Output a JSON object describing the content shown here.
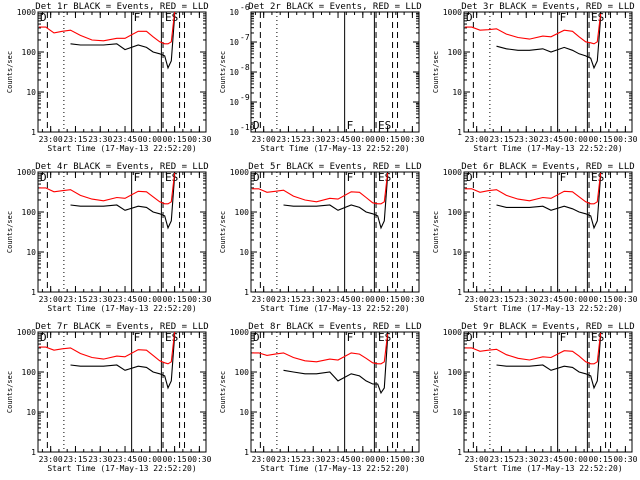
{
  "colors": {
    "events": "#000000",
    "lld": "#ff0000",
    "background": "#ffffff",
    "axes": "#000000"
  },
  "chart_data": [
    {
      "type": "line",
      "title": "Det 1r BLACK = Events, RED = LLD",
      "xlabel": "Start Time (17-May-13 22:52:20)",
      "ylabel": "Counts/sec",
      "yscale": "log",
      "ylim": [
        1,
        1000
      ],
      "ytick_labels": [
        "1",
        "10",
        "100",
        "1000"
      ],
      "xtick_labels": [
        "23:00",
        "23:15",
        "23:30",
        "23:45",
        "00:00",
        "00:15",
        "00:30"
      ],
      "x": [
        "22:53",
        "22:57",
        "23:02",
        "23:07",
        "23:12",
        "23:18",
        "23:25",
        "23:32",
        "23:40",
        "23:45",
        "23:53",
        "23:58",
        "00:02",
        "00:06",
        "00:09",
        "00:11",
        "00:13",
        "00:15"
      ],
      "series": [
        {
          "name": "BLACK = Events",
          "values": [
            null,
            null,
            null,
            null,
            160,
            150,
            150,
            150,
            160,
            115,
            150,
            130,
            100,
            90,
            80,
            40,
            60,
            800
          ]
        },
        {
          "name": "RED = LLD",
          "values": [
            420,
            420,
            300,
            330,
            350,
            260,
            200,
            190,
            220,
            220,
            330,
            330,
            240,
            180,
            160,
            160,
            180,
            1000
          ]
        }
      ],
      "flags": [
        "D",
        "F",
        "E",
        "S"
      ],
      "vlines": [
        {
          "x": "22:58",
          "style": "dashed"
        },
        {
          "x": "23:08",
          "style": "dotted"
        },
        {
          "x": "23:49",
          "style": "solid"
        },
        {
          "x": "00:07",
          "style": "solid"
        },
        {
          "x": "00:08",
          "style": "dashed"
        },
        {
          "x": "00:18",
          "style": "dashed"
        },
        {
          "x": "00:21",
          "style": "dashed"
        }
      ]
    },
    {
      "type": "line",
      "title": "Det 2r BLACK = Events, RED = LLD",
      "xlabel": "Start Time (17-May-13 22:52:20)",
      "ylabel": "Counts/sec",
      "yscale": "log",
      "ylim": [
        1e-10,
        1e-06
      ],
      "ytick_labels": [
        "10",
        "10",
        "10",
        "10",
        "10"
      ],
      "ytick_exponents": [
        "-10",
        "-9",
        "-8",
        "-7",
        "-6"
      ],
      "xtick_labels": [
        "23:00",
        "23:15",
        "23:30",
        "23:45",
        "00:00",
        "00:15",
        "00:30"
      ],
      "x": [],
      "series": [
        {
          "name": "BLACK = Events",
          "values": []
        },
        {
          "name": "RED = LLD",
          "values": []
        }
      ],
      "flags": [
        "D",
        "F",
        "E",
        "S"
      ],
      "vlines": [
        {
          "x": "22:58",
          "style": "dashed"
        },
        {
          "x": "23:08",
          "style": "dotted"
        },
        {
          "x": "23:49",
          "style": "solid"
        },
        {
          "x": "00:07",
          "style": "solid"
        },
        {
          "x": "00:08",
          "style": "dashed"
        },
        {
          "x": "00:18",
          "style": "dashed"
        },
        {
          "x": "00:21",
          "style": "dashed"
        }
      ]
    },
    {
      "type": "line",
      "title": "Det 3r BLACK = Events, RED = LLD",
      "xlabel": "Start Time (17-May-13 22:52:20)",
      "ylabel": "Counts/sec",
      "yscale": "log",
      "ylim": [
        1,
        1000
      ],
      "ytick_labels": [
        "1",
        "10",
        "100",
        "1000"
      ],
      "xtick_labels": [
        "23:00",
        "23:15",
        "23:30",
        "23:45",
        "00:00",
        "00:15",
        "00:30"
      ],
      "x": [
        "22:53",
        "22:57",
        "23:02",
        "23:07",
        "23:12",
        "23:18",
        "23:25",
        "23:32",
        "23:40",
        "23:45",
        "23:53",
        "23:58",
        "00:02",
        "00:06",
        "00:09",
        "00:11",
        "00:13",
        "00:15"
      ],
      "series": [
        {
          "name": "BLACK = Events",
          "values": [
            null,
            null,
            null,
            null,
            140,
            120,
            110,
            110,
            120,
            100,
            130,
            110,
            90,
            80,
            70,
            40,
            60,
            700
          ]
        },
        {
          "name": "RED = LLD",
          "values": [
            420,
            420,
            350,
            360,
            380,
            280,
            230,
            210,
            250,
            240,
            350,
            330,
            240,
            180,
            170,
            160,
            180,
            900
          ]
        }
      ],
      "flags": [
        "D",
        "F",
        "E",
        "S"
      ],
      "vlines": [
        {
          "x": "22:58",
          "style": "dashed"
        },
        {
          "x": "23:08",
          "style": "dotted"
        },
        {
          "x": "23:49",
          "style": "solid"
        },
        {
          "x": "00:07",
          "style": "solid"
        },
        {
          "x": "00:08",
          "style": "dashed"
        },
        {
          "x": "00:18",
          "style": "dashed"
        },
        {
          "x": "00:21",
          "style": "dashed"
        }
      ]
    },
    {
      "type": "line",
      "title": "Det 4r BLACK = Events, RED = LLD",
      "xlabel": "Start Time (17-May-13 22:52:20)",
      "ylabel": "Counts/sec",
      "yscale": "log",
      "ylim": [
        1,
        1000
      ],
      "ytick_labels": [
        "1",
        "10",
        "100",
        "1000"
      ],
      "xtick_labels": [
        "23:00",
        "23:15",
        "23:30",
        "23:45",
        "00:00",
        "00:15",
        "00:30"
      ],
      "x": [
        "22:53",
        "22:57",
        "23:02",
        "23:07",
        "23:12",
        "23:18",
        "23:25",
        "23:32",
        "23:40",
        "23:45",
        "23:53",
        "23:58",
        "00:02",
        "00:06",
        "00:09",
        "00:11",
        "00:13",
        "00:15"
      ],
      "series": [
        {
          "name": "BLACK = Events",
          "values": [
            null,
            null,
            null,
            null,
            150,
            140,
            140,
            140,
            150,
            110,
            140,
            130,
            100,
            90,
            80,
            40,
            60,
            800
          ]
        },
        {
          "name": "RED = LLD",
          "values": [
            400,
            400,
            320,
            340,
            360,
            260,
            210,
            190,
            230,
            220,
            330,
            320,
            240,
            180,
            160,
            160,
            180,
            950
          ]
        }
      ],
      "flags": [
        "D",
        "F",
        "E",
        "S"
      ],
      "vlines": [
        {
          "x": "22:58",
          "style": "dashed"
        },
        {
          "x": "23:08",
          "style": "dotted"
        },
        {
          "x": "23:49",
          "style": "solid"
        },
        {
          "x": "00:07",
          "style": "solid"
        },
        {
          "x": "00:08",
          "style": "dashed"
        },
        {
          "x": "00:18",
          "style": "dashed"
        },
        {
          "x": "00:21",
          "style": "dashed"
        }
      ]
    },
    {
      "type": "line",
      "title": "Det 5r BLACK = Events, RED = LLD",
      "xlabel": "Start Time (17-May-13 22:52:20)",
      "ylabel": "Counts/sec",
      "yscale": "log",
      "ylim": [
        1,
        1000
      ],
      "ytick_labels": [
        "1",
        "10",
        "100",
        "1000"
      ],
      "xtick_labels": [
        "23:00",
        "23:15",
        "23:30",
        "23:45",
        "00:00",
        "00:15",
        "00:30"
      ],
      "x": [
        "22:53",
        "22:57",
        "23:02",
        "23:07",
        "23:12",
        "23:18",
        "23:25",
        "23:32",
        "23:40",
        "23:45",
        "23:53",
        "23:58",
        "00:02",
        "00:06",
        "00:09",
        "00:11",
        "00:13",
        "00:15"
      ],
      "series": [
        {
          "name": "BLACK = Events",
          "values": [
            null,
            null,
            null,
            null,
            150,
            140,
            140,
            140,
            150,
            110,
            150,
            130,
            100,
            90,
            80,
            40,
            60,
            800
          ]
        },
        {
          "name": "RED = LLD",
          "values": [
            380,
            380,
            310,
            330,
            350,
            250,
            200,
            180,
            220,
            210,
            320,
            310,
            230,
            170,
            160,
            160,
            180,
            950
          ]
        }
      ],
      "flags": [
        "D",
        "F",
        "E",
        "S"
      ],
      "vlines": [
        {
          "x": "22:58",
          "style": "dashed"
        },
        {
          "x": "23:08",
          "style": "dotted"
        },
        {
          "x": "23:49",
          "style": "solid"
        },
        {
          "x": "00:07",
          "style": "solid"
        },
        {
          "x": "00:08",
          "style": "dashed"
        },
        {
          "x": "00:18",
          "style": "dashed"
        },
        {
          "x": "00:21",
          "style": "dashed"
        }
      ]
    },
    {
      "type": "line",
      "title": "Det 6r BLACK = Events, RED = LLD",
      "xlabel": "Start Time (17-May-13 22:52:20)",
      "ylabel": "Counts/sec",
      "yscale": "log",
      "ylim": [
        1,
        1000
      ],
      "ytick_labels": [
        "1",
        "10",
        "100",
        "1000"
      ],
      "xtick_labels": [
        "23:00",
        "23:15",
        "23:30",
        "23:45",
        "00:00",
        "00:15",
        "00:30"
      ],
      "x": [
        "22:53",
        "22:57",
        "23:02",
        "23:07",
        "23:12",
        "23:18",
        "23:25",
        "23:32",
        "23:40",
        "23:45",
        "23:53",
        "23:58",
        "00:02",
        "00:06",
        "00:09",
        "00:11",
        "00:13",
        "00:15"
      ],
      "series": [
        {
          "name": "BLACK = Events",
          "values": [
            null,
            null,
            null,
            null,
            150,
            130,
            130,
            130,
            140,
            110,
            140,
            120,
            100,
            90,
            80,
            40,
            60,
            800
          ]
        },
        {
          "name": "RED = LLD",
          "values": [
            380,
            380,
            310,
            340,
            360,
            260,
            210,
            190,
            230,
            220,
            330,
            320,
            240,
            180,
            160,
            160,
            180,
            950
          ]
        }
      ],
      "flags": [
        "D",
        "F",
        "E",
        "S"
      ],
      "vlines": [
        {
          "x": "22:58",
          "style": "dashed"
        },
        {
          "x": "23:08",
          "style": "dotted"
        },
        {
          "x": "23:49",
          "style": "solid"
        },
        {
          "x": "00:07",
          "style": "solid"
        },
        {
          "x": "00:08",
          "style": "dashed"
        },
        {
          "x": "00:18",
          "style": "dashed"
        },
        {
          "x": "00:21",
          "style": "dashed"
        }
      ]
    },
    {
      "type": "line",
      "title": "Det 7r BLACK = Events, RED = LLD",
      "xlabel": "Start Time (17-May-13 22:52:20)",
      "ylabel": "Counts/sec",
      "yscale": "log",
      "ylim": [
        1,
        1000
      ],
      "ytick_labels": [
        "1",
        "10",
        "100",
        "1000"
      ],
      "xtick_labels": [
        "23:00",
        "23:15",
        "23:30",
        "23:45",
        "00:00",
        "00:15",
        "00:30"
      ],
      "x": [
        "22:53",
        "22:57",
        "23:02",
        "23:07",
        "23:12",
        "23:18",
        "23:25",
        "23:32",
        "23:40",
        "23:45",
        "23:53",
        "23:58",
        "00:02",
        "00:06",
        "00:09",
        "00:11",
        "00:13",
        "00:15"
      ],
      "series": [
        {
          "name": "BLACK = Events",
          "values": [
            null,
            null,
            null,
            null,
            150,
            140,
            140,
            140,
            150,
            110,
            140,
            130,
            100,
            90,
            80,
            40,
            60,
            800
          ]
        },
        {
          "name": "RED = LLD",
          "values": [
            420,
            420,
            350,
            380,
            400,
            290,
            230,
            210,
            250,
            240,
            360,
            350,
            260,
            190,
            170,
            160,
            180,
            1000
          ]
        }
      ],
      "flags": [
        "D",
        "F",
        "E",
        "S"
      ],
      "vlines": [
        {
          "x": "22:58",
          "style": "dashed"
        },
        {
          "x": "23:08",
          "style": "dotted"
        },
        {
          "x": "23:49",
          "style": "solid"
        },
        {
          "x": "00:07",
          "style": "solid"
        },
        {
          "x": "00:08",
          "style": "dashed"
        },
        {
          "x": "00:18",
          "style": "dashed"
        },
        {
          "x": "00:21",
          "style": "dashed"
        }
      ]
    },
    {
      "type": "line",
      "title": "Det 8r BLACK = Events, RED = LLD",
      "xlabel": "Start Time (17-May-13 22:52:20)",
      "ylabel": "Counts/sec",
      "yscale": "log",
      "ylim": [
        1,
        1000
      ],
      "ytick_labels": [
        "1",
        "10",
        "100",
        "1000"
      ],
      "xtick_labels": [
        "23:00",
        "23:15",
        "23:30",
        "23:45",
        "00:00",
        "00:15",
        "00:30"
      ],
      "x": [
        "22:53",
        "22:57",
        "23:02",
        "23:07",
        "23:12",
        "23:18",
        "23:25",
        "23:32",
        "23:40",
        "23:45",
        "23:53",
        "23:58",
        "00:02",
        "00:06",
        "00:09",
        "00:11",
        "00:13",
        "00:15"
      ],
      "series": [
        {
          "name": "BLACK = Events",
          "values": [
            null,
            null,
            null,
            null,
            110,
            100,
            90,
            90,
            100,
            60,
            90,
            80,
            60,
            50,
            50,
            30,
            40,
            700
          ]
        },
        {
          "name": "RED = LLD",
          "values": [
            300,
            300,
            260,
            280,
            300,
            230,
            190,
            180,
            210,
            200,
            300,
            280,
            220,
            170,
            160,
            160,
            180,
            900
          ]
        }
      ],
      "flags": [
        "D",
        "F",
        "E",
        "S"
      ],
      "vlines": [
        {
          "x": "22:58",
          "style": "dashed"
        },
        {
          "x": "23:08",
          "style": "dotted"
        },
        {
          "x": "23:49",
          "style": "solid"
        },
        {
          "x": "00:07",
          "style": "solid"
        },
        {
          "x": "00:08",
          "style": "dashed"
        },
        {
          "x": "00:18",
          "style": "dashed"
        },
        {
          "x": "00:21",
          "style": "dashed"
        }
      ]
    },
    {
      "type": "line",
      "title": "Det 9r BLACK = Events, RED = LLD",
      "xlabel": "Start Time (17-May-13 22:52:20)",
      "ylabel": "Counts/sec",
      "yscale": "log",
      "ylim": [
        1,
        1000
      ],
      "ytick_labels": [
        "1",
        "10",
        "100",
        "1000"
      ],
      "xtick_labels": [
        "23:00",
        "23:15",
        "23:30",
        "23:45",
        "00:00",
        "00:15",
        "00:30"
      ],
      "x": [
        "22:53",
        "22:57",
        "23:02",
        "23:07",
        "23:12",
        "23:18",
        "23:25",
        "23:32",
        "23:40",
        "23:45",
        "23:53",
        "23:58",
        "00:02",
        "00:06",
        "00:09",
        "00:11",
        "00:13",
        "00:15"
      ],
      "series": [
        {
          "name": "BLACK = Events",
          "values": [
            null,
            null,
            null,
            null,
            150,
            140,
            140,
            140,
            150,
            110,
            140,
            130,
            100,
            90,
            80,
            40,
            60,
            800
          ]
        },
        {
          "name": "RED = LLD",
          "values": [
            400,
            400,
            330,
            350,
            370,
            270,
            220,
            200,
            240,
            230,
            340,
            330,
            250,
            180,
            160,
            160,
            180,
            950
          ]
        }
      ],
      "flags": [
        "D",
        "F",
        "E",
        "S"
      ],
      "vlines": [
        {
          "x": "22:58",
          "style": "dashed"
        },
        {
          "x": "23:08",
          "style": "dotted"
        },
        {
          "x": "23:49",
          "style": "solid"
        },
        {
          "x": "00:07",
          "style": "solid"
        },
        {
          "x": "00:08",
          "style": "dashed"
        },
        {
          "x": "00:18",
          "style": "dashed"
        },
        {
          "x": "00:21",
          "style": "dashed"
        }
      ]
    }
  ]
}
